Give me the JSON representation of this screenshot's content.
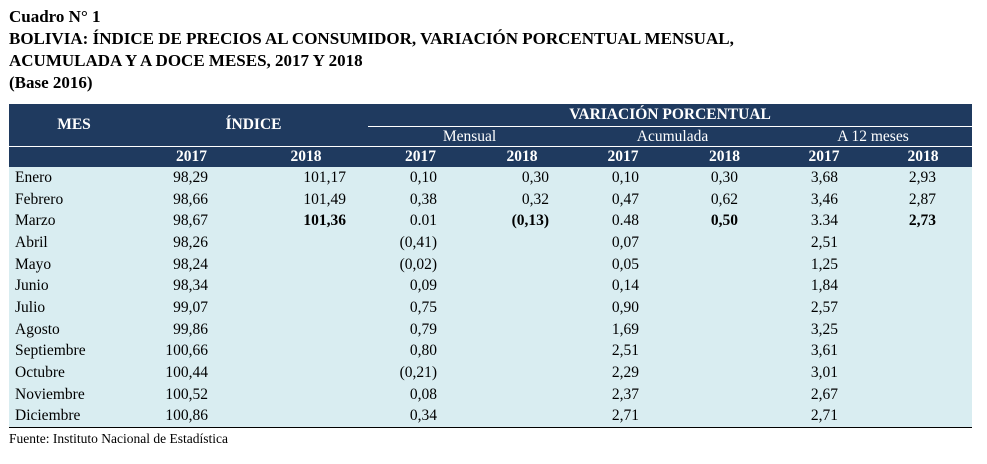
{
  "title": {
    "label": "Cuadro N° 1",
    "line1": "BOLIVIA: ÍNDICE DE PRECIOS AL CONSUMIDOR, VARIACIÓN PORCENTUAL MENSUAL,",
    "line2": "ACUMULADA Y A DOCE MESES, 2017 Y 2018",
    "base": "(Base 2016)"
  },
  "header": {
    "mes": "MES",
    "indice": "ÍNDICE",
    "variacion": "VARIACIÓN PORCENTUAL",
    "mensual": "Mensual",
    "acumulada": "Acumulada",
    "doce_meses": "A 12 meses",
    "years": [
      "2017",
      "2018",
      "2017",
      "2018",
      "2017",
      "2018",
      "2017",
      "2018"
    ]
  },
  "rows": [
    {
      "mes": "Enero",
      "idx2017": "98,29",
      "idx2018": "101,17",
      "men2017": "0,10",
      "men2018": "0,30",
      "acu2017": "0,10",
      "acu2018": "0,30",
      "doc2017": "3,68",
      "doc2018": "2,93"
    },
    {
      "mes": "Febrero",
      "idx2017": "98,66",
      "idx2018": "101,49",
      "men2017": "0,38",
      "men2018": "0,32",
      "acu2017": "0,47",
      "acu2018": "0,62",
      "doc2017": "3,46",
      "doc2018": "2,87"
    },
    {
      "mes": "Marzo",
      "idx2017": "98,67",
      "idx2018": "101,36",
      "men2017": "0.01",
      "men2018": "(0,13)",
      "acu2017": "0.48",
      "acu2018": "0,50",
      "doc2017": "3.34",
      "doc2018": "2,73"
    },
    {
      "mes": "Abril",
      "idx2017": "98,26",
      "idx2018": "",
      "men2017": "(0,41)",
      "men2018": "",
      "acu2017": "0,07",
      "acu2018": "",
      "doc2017": "2,51",
      "doc2018": ""
    },
    {
      "mes": "Mayo",
      "idx2017": "98,24",
      "idx2018": "",
      "men2017": "(0,02)",
      "men2018": "",
      "acu2017": "0,05",
      "acu2018": "",
      "doc2017": "1,25",
      "doc2018": ""
    },
    {
      "mes": "Junio",
      "idx2017": "98,34",
      "idx2018": "",
      "men2017": "0,09",
      "men2018": "",
      "acu2017": "0,14",
      "acu2018": "",
      "doc2017": "1,84",
      "doc2018": ""
    },
    {
      "mes": "Julio",
      "idx2017": "99,07",
      "idx2018": "",
      "men2017": "0,75",
      "men2018": "",
      "acu2017": "0,90",
      "acu2018": "",
      "doc2017": "2,57",
      "doc2018": ""
    },
    {
      "mes": "Agosto",
      "idx2017": "99,86",
      "idx2018": "",
      "men2017": "0,79",
      "men2018": "",
      "acu2017": "1,69",
      "acu2018": "",
      "doc2017": "3,25",
      "doc2018": ""
    },
    {
      "mes": "Septiembre",
      "idx2017": "100,66",
      "idx2018": "",
      "men2017": "0,80",
      "men2018": "",
      "acu2017": "2,51",
      "acu2018": "",
      "doc2017": "3,61",
      "doc2018": ""
    },
    {
      "mes": "Octubre",
      "idx2017": "100,44",
      "idx2018": "",
      "men2017": "(0,21)",
      "men2018": "",
      "acu2017": "2,29",
      "acu2018": "",
      "doc2017": "3,01",
      "doc2018": ""
    },
    {
      "mes": "Noviembre",
      "idx2017": "100,52",
      "idx2018": "",
      "men2017": "0,08",
      "men2018": "",
      "acu2017": "2,37",
      "acu2018": "",
      "doc2017": "2,67",
      "doc2018": ""
    },
    {
      "mes": "Diciembre",
      "idx2017": "100,86",
      "idx2018": "",
      "men2017": "0,34",
      "men2018": "",
      "acu2017": "2,71",
      "acu2018": "",
      "doc2017": "2,71",
      "doc2018": ""
    }
  ],
  "source": "Fuente: Instituto Nacional de Estadística",
  "colors": {
    "header_bg": "#1f3a5f",
    "body_bg": "#d9edf1"
  }
}
